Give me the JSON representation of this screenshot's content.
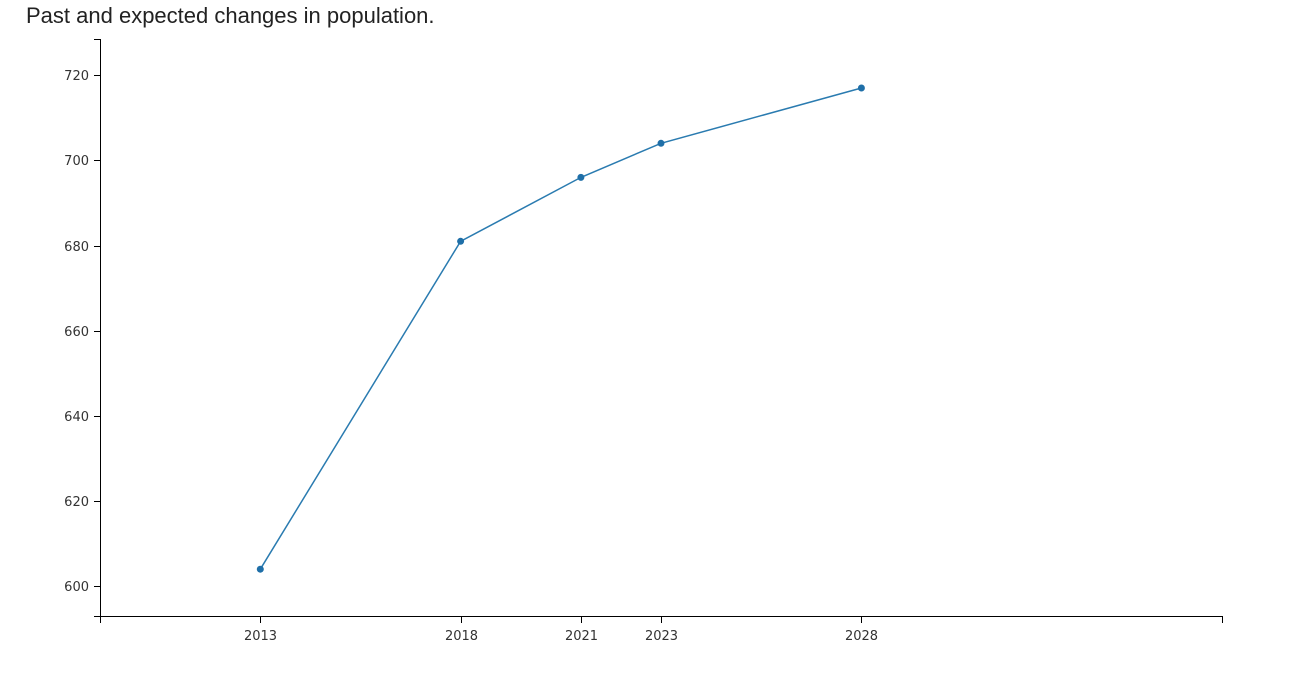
{
  "chart_data": {
    "type": "line",
    "title": "Past and expected changes in population.",
    "xlabel": "",
    "ylabel": "",
    "x": [
      2013,
      2018,
      2021,
      2023,
      2028
    ],
    "x_tick_labels": [
      "2013",
      "2018",
      "2021",
      "2023",
      "2028"
    ],
    "xlim": [
      2009,
      2037
    ],
    "y_ticks": [
      600,
      620,
      640,
      660,
      680,
      700,
      720
    ],
    "y_tick_labels": [
      "600",
      "620",
      "640",
      "660",
      "680",
      "700",
      "720"
    ],
    "ylim": [
      593,
      728.5
    ],
    "series": [
      {
        "values": [
          604,
          681,
          696,
          704,
          717
        ]
      }
    ],
    "grid": false,
    "line_color": "#2a7bb0",
    "marker_color": "#1f6fa8",
    "axis_color": "#000000"
  }
}
